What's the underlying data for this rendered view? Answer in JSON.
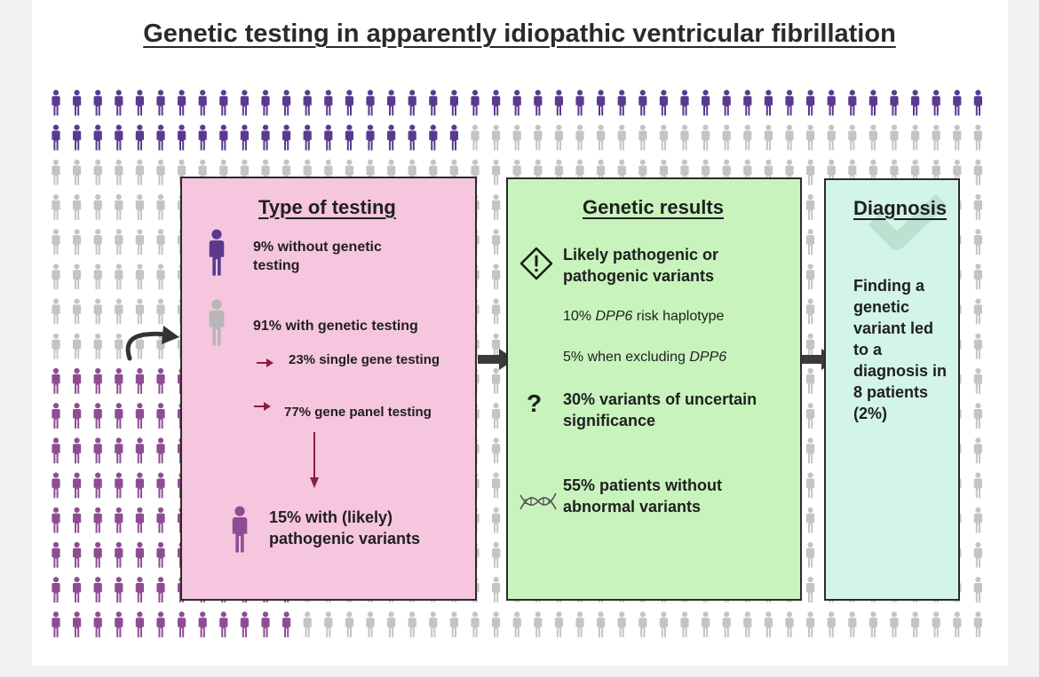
{
  "title": "Genetic testing in apparently idiopathic ventricular fibrillation",
  "colors": {
    "purple_dark": "#5b3a8e",
    "magenta": "#8e4d93",
    "gray_person": "#c4c4c4",
    "pink_box": "#f5c6dd",
    "green_box": "#c8f3bd",
    "mint_box": "#d2f4ea",
    "arrow_red": "#8b1e3f"
  },
  "type_of_testing": {
    "title": "Type of testing",
    "without_testing": "9% without genetic testing",
    "with_testing": "91% with genetic testing",
    "single_gene": "23% single gene testing",
    "gene_panel": "77% gene panel testing",
    "pathogenic": "15% with (likely) pathogenic variants"
  },
  "genetic_results": {
    "title": "Genetic results",
    "likely_pathogenic": "Likely pathogenic or pathogenic variants",
    "dpp6_pct": "10%",
    "dpp6_gene": "DPP6",
    "dpp6_rest": "risk haplotype",
    "excl_prefix": "5% when excluding",
    "excl_gene": "DPP6",
    "vus": "30% variants of uncertain significance",
    "vus_symbol": "?",
    "no_variants": "55% patients without abnormal variants"
  },
  "diagnosis": {
    "title": "Diagnosis",
    "text": "Finding a genetic variant led to a diagnosis in 8 patients (2%)"
  },
  "icons": [
    "person-icon",
    "warning-diamond-icon",
    "question-icon",
    "dna-icon",
    "checkmark-icon",
    "curved-arrow-icon",
    "chevron-arrow-icon"
  ]
}
